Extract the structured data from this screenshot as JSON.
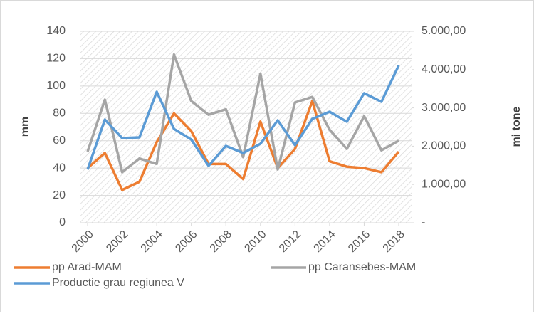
{
  "chart_data": {
    "type": "line",
    "x": [
      2000,
      2001,
      2002,
      2003,
      2004,
      2005,
      2006,
      2007,
      2008,
      2009,
      2010,
      2011,
      2012,
      2013,
      2014,
      2015,
      2016,
      2017,
      2018
    ],
    "xlim": [
      2000,
      2018
    ],
    "xticks": [
      2000,
      2002,
      2004,
      2006,
      2008,
      2010,
      2012,
      2014,
      2016,
      2018
    ],
    "y_label": "mm",
    "y2_label": "mi tone",
    "ylim": [
      0,
      140
    ],
    "yticks": [
      0,
      20,
      40,
      60,
      80,
      100,
      120,
      140
    ],
    "y2lim": [
      0,
      5000
    ],
    "y2ticks": [
      {
        "value": 0,
        "label": "-"
      },
      {
        "value": 1000,
        "label": "1.000,00"
      },
      {
        "value": 2000,
        "label": "2.000,00"
      },
      {
        "value": 3000,
        "label": "3.000,00"
      },
      {
        "value": 4000,
        "label": "4.000,00"
      },
      {
        "value": 5000,
        "label": "5.000,00"
      }
    ],
    "grid": true,
    "legend": "bottom",
    "series": [
      {
        "name": "pp Arad-MAM",
        "color": "#ed7d31",
        "values": [
          40,
          51,
          24,
          30,
          59,
          80,
          67,
          43,
          43,
          32,
          74,
          40,
          54,
          89,
          45,
          41,
          40,
          37,
          52
        ]
      },
      {
        "name": "pp Caransebes-MAM",
        "color": "#a5a5a5",
        "values": [
          52,
          90,
          37,
          47,
          43,
          123,
          89,
          79,
          83,
          48,
          109,
          39,
          88,
          92,
          68,
          54,
          78,
          53,
          60
        ]
      },
      {
        "name": "Productie grau regiunea V",
        "color": "#5b9bd5",
        "axis": "y2",
        "values": [
          1390,
          2695,
          2212,
          2230,
          3420,
          2450,
          2175,
          1487,
          2007,
          1822,
          2063,
          2677,
          2026,
          2714,
          2900,
          2640,
          3383,
          3160,
          4108
        ]
      }
    ]
  }
}
